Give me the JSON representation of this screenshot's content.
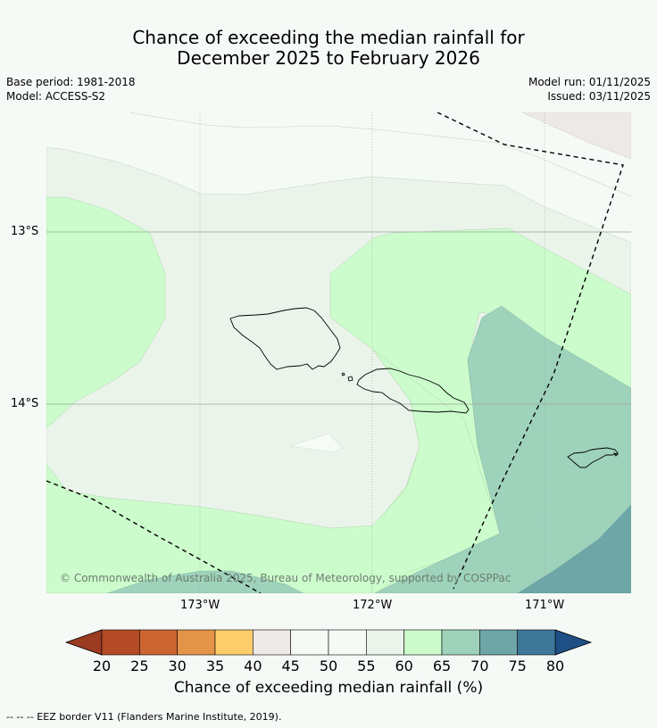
{
  "title": {
    "line1": "Chance of exceeding the median rainfall for",
    "line2": "December 2025 to February 2026"
  },
  "meta": {
    "base_period": "Base period: 1981-2018",
    "model": "Model: ACCESS-S2",
    "model_run": "Model run: 01/11/2025",
    "issued": "Issued: 03/11/2025"
  },
  "map": {
    "lat_labels": [
      "13°S",
      "14°S"
    ],
    "lon_labels": [
      "173°W",
      "172°W",
      "171°W"
    ],
    "copyright": "© Commonwealth of Australia 2025, Bureau of Meteorology, supported by COSPPac",
    "region_colors": {
      "c45_50": "#f6faf6",
      "c50_55": "#f7fbf7",
      "c55_60": "#eaf4ea",
      "c60_65": "#ccfccc",
      "c65_70": "#9ed2bb",
      "c70_75": "#6ea6a8",
      "c40_45": "#ede9e6"
    }
  },
  "colorbar": {
    "ticks": [
      "20",
      "25",
      "30",
      "35",
      "40",
      "45",
      "50",
      "55",
      "60",
      "65",
      "70",
      "75",
      "80"
    ],
    "colors": [
      "#b24b26",
      "#cd6532",
      "#e39447",
      "#fdcd6b",
      "#ede9e6",
      "#f6faf6",
      "#f6faf6",
      "#eaf4ea",
      "#ccfccc",
      "#9ed2bb",
      "#6ea6a8",
      "#3f7799"
    ],
    "under_color": "#9b3b21",
    "over_color": "#1e4f85",
    "label": "Chance of exceeding median rainfall (%)"
  },
  "footnote": "--  --  -- EEZ border V11 (Flanders Marine Institute, 2019)."
}
